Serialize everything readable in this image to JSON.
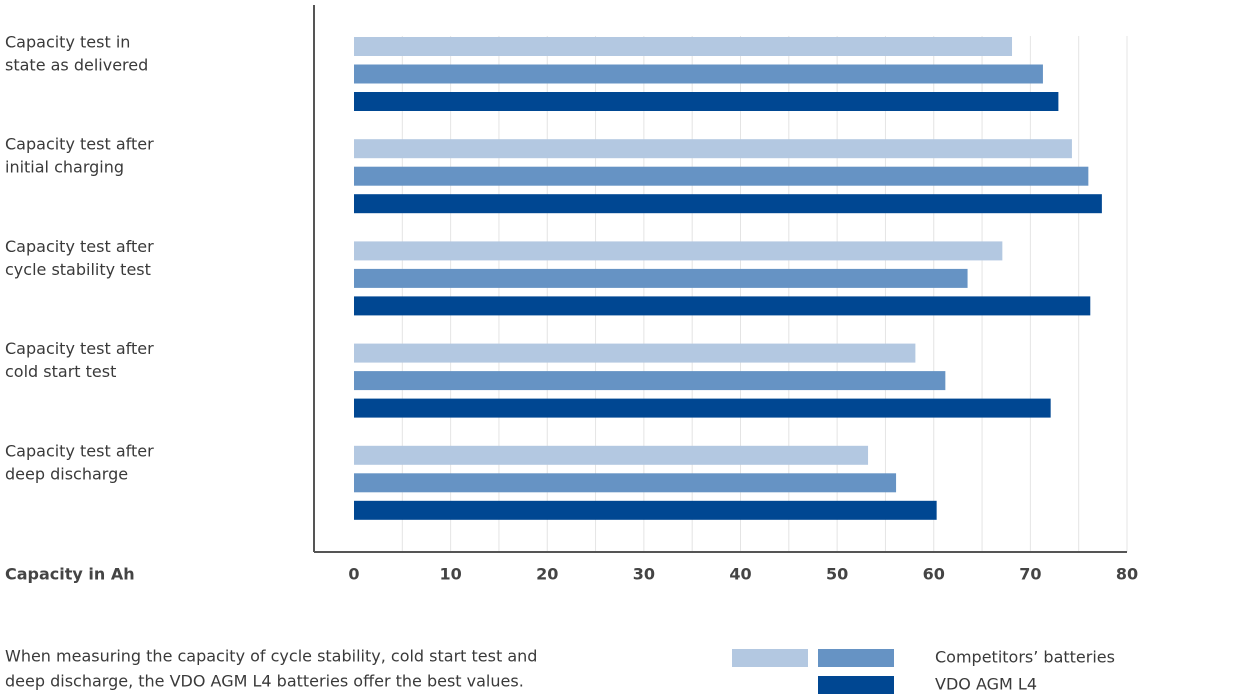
{
  "chart_data": {
    "type": "bar",
    "orientation": "horizontal",
    "categories": [
      [
        "Capacity test in",
        "state as delivered"
      ],
      [
        "Capacity test after",
        "initial charging"
      ],
      [
        "Capacity test after",
        "cycle stability test"
      ],
      [
        "Capacity test after",
        "cold start test"
      ],
      [
        "Capacity test after",
        "deep discharge"
      ]
    ],
    "series": [
      {
        "name": null,
        "color": "#b3c8e1",
        "values": [
          68.1,
          74.3,
          67.1,
          58.1,
          53.2
        ]
      },
      {
        "name": "Competitors’ batteries",
        "color": "#6693c4",
        "values": [
          71.3,
          76.0,
          63.5,
          61.2,
          56.1
        ]
      },
      {
        "name": "VDO AGM L4",
        "color": "#004792",
        "values": [
          72.9,
          77.4,
          76.2,
          72.1,
          60.3
        ]
      }
    ],
    "xlabel": "Capacity in Ah",
    "xlim": [
      0,
      80
    ],
    "xticks": [
      0,
      10,
      20,
      30,
      40,
      50,
      60,
      70,
      80
    ],
    "minor_xticks": [
      5,
      15,
      25,
      35,
      45,
      55,
      65,
      75
    ],
    "grid": true,
    "note": [
      "When measuring the capacity of cycle stability, cold start test and",
      "deep discharge, the VDO AGM L4 batteries offer the best values."
    ]
  }
}
